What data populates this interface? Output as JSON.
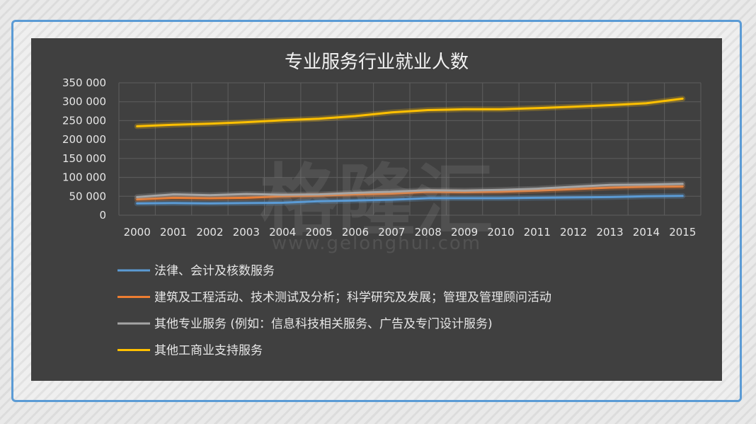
{
  "chart_data": {
    "type": "line",
    "title": "专业服务行业就业人数",
    "xlabel": "",
    "ylabel": "",
    "x": [
      "2000",
      "2001",
      "2002",
      "2003",
      "2004",
      "2005",
      "2006",
      "2007",
      "2008",
      "2009",
      "2010",
      "2011",
      "2012",
      "2013",
      "2014",
      "2015"
    ],
    "ylim": [
      0,
      350000
    ],
    "yticks": [
      0,
      50000,
      100000,
      150000,
      200000,
      250000,
      300000,
      350000
    ],
    "ytick_labels": [
      "0",
      "50 000",
      "100 000",
      "150 000",
      "200 000",
      "250 000",
      "300 000",
      "350 000"
    ],
    "grid": true,
    "legend_position": "bottom-left",
    "series": [
      {
        "name": "法律、会计及核数服务",
        "color": "#5b9bd5",
        "values": [
          31000,
          32000,
          31000,
          32000,
          33000,
          37000,
          39000,
          41000,
          45000,
          45000,
          45000,
          46000,
          47000,
          48000,
          50000,
          51000
        ]
      },
      {
        "name": "建筑及工程活动、技术测试及分析；科学研究及发展；管理及管理顾问活动",
        "color": "#ed7d31",
        "values": [
          42000,
          46000,
          45000,
          46000,
          50000,
          52000,
          55000,
          57000,
          62000,
          61000,
          62000,
          65000,
          69000,
          73000,
          75000,
          76000
        ]
      },
      {
        "name": "其他专业服务 (例如：信息科技相关服务、广告及专门设计服务)",
        "color": "#a5a5a5",
        "values": [
          48000,
          55000,
          53000,
          56000,
          54000,
          55000,
          59000,
          62000,
          66000,
          65000,
          67000,
          70000,
          75000,
          80000,
          81000,
          83000
        ]
      },
      {
        "name": "其他工商业支持服务",
        "color": "#ffc000",
        "values": [
          235000,
          239000,
          242000,
          246000,
          251000,
          255000,
          262000,
          272000,
          278000,
          280000,
          280000,
          283000,
          287000,
          291000,
          296000,
          308000
        ]
      }
    ]
  },
  "watermark": {
    "cn": "格隆汇",
    "en": "www.gelonghui.com"
  },
  "colors": {
    "panel_background": "#404040",
    "frame_border": "#5b9bd5",
    "gridline": "#5e5e5e"
  }
}
